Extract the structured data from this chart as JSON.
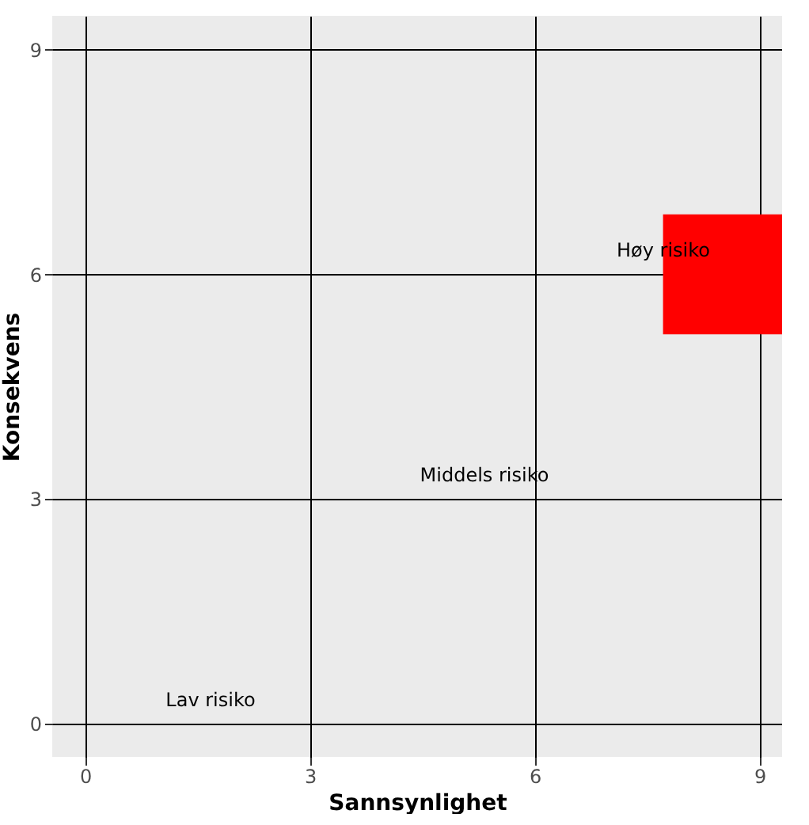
{
  "chart_data": {
    "type": "bar",
    "xlabel": "Sannsynlighet",
    "ylabel": "Konsekvens",
    "x": [
      9
    ],
    "series": [
      {
        "color": "#ff0000",
        "values": [
          1.6
        ],
        "base": [
          5.2
        ]
      }
    ],
    "xlim": [
      -0.44,
      9.3
    ],
    "ylim": [
      -0.44,
      9.45
    ],
    "xticks": [
      0,
      3,
      6,
      9
    ],
    "yticks": [
      0,
      3,
      6,
      9
    ],
    "grid": true,
    "annotations": [
      "Lav risiko",
      "Middels risiko",
      "Høy risiko"
    ]
  }
}
